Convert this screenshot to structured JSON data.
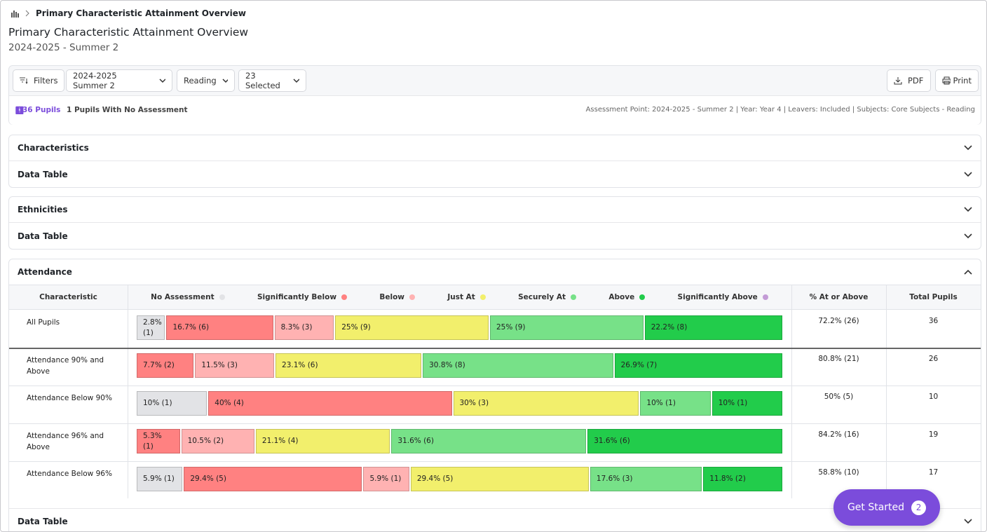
{
  "breadcrumb": {
    "title": "Primary Characteristic Attainment Overview"
  },
  "header": {
    "title": "Primary Characteristic Attainment Overview",
    "subtitle": "2024-2025 - Summer 2"
  },
  "toolbar": {
    "filters": "Filters",
    "term": "2024-2025 Summer 2",
    "subject": "Reading",
    "selected": "23 Selected",
    "pdf": "PDF",
    "print": "Print"
  },
  "summary": {
    "pupils": "36 Pupils",
    "no_assessment": "1 Pupils With No Assessment",
    "details": "Assessment Point: 2024-2025 - Summer 2 | Year: Year 4 | Leavers: Included | Subjects: Core Subjects - Reading"
  },
  "cards": [
    {
      "title": "Characteristics",
      "table": "Data Table"
    },
    {
      "title": "Ethnicities",
      "table": "Data Table"
    }
  ],
  "attendance": {
    "title": "Attendance",
    "columns": {
      "characteristic": "Characteristic",
      "at_or_above": "% At or Above",
      "total": "Total Pupils"
    },
    "legend": [
      {
        "name": "No Assessment",
        "color": "#e2e3e6"
      },
      {
        "name": "Significantly Below",
        "color": "#ff8181"
      },
      {
        "name": "Below",
        "color": "#ffb2b2"
      },
      {
        "name": "Just At",
        "color": "#f2ef6c"
      },
      {
        "name": "Securely At",
        "color": "#77e188"
      },
      {
        "name": "Above",
        "color": "#22cc4b"
      },
      {
        "name": "Significantly Above",
        "color": "#c39bd6"
      }
    ],
    "rows": [
      {
        "label": "All Pupils",
        "at_or_above": "72.2% (26)",
        "total": "36",
        "segments": [
          {
            "color": "#e2e3e6",
            "value": 2.8,
            "label": "2.8% (1)"
          },
          {
            "color": "#ff8181",
            "value": 16.7,
            "label": "16.7% (6)"
          },
          {
            "color": "#ffb2b2",
            "value": 8.3,
            "label": "8.3% (3)"
          },
          {
            "color": "#f2ef6c",
            "value": 25,
            "label": "25% (9)"
          },
          {
            "color": "#77e188",
            "value": 25,
            "label": "25% (9)"
          },
          {
            "color": "#22cc4b",
            "value": 22.2,
            "label": "22.2% (8)"
          }
        ]
      },
      {
        "label": "Attendance 90% and Above",
        "at_or_above": "80.8% (21)",
        "total": "26",
        "segments": [
          {
            "color": "#ff8181",
            "value": 7.7,
            "label": "7.7% (2)"
          },
          {
            "color": "#ffb2b2",
            "value": 11.5,
            "label": "11.5% (3)"
          },
          {
            "color": "#f2ef6c",
            "value": 23.1,
            "label": "23.1% (6)"
          },
          {
            "color": "#77e188",
            "value": 30.8,
            "label": "30.8% (8)"
          },
          {
            "color": "#22cc4b",
            "value": 26.9,
            "label": "26.9% (7)"
          }
        ]
      },
      {
        "label": "Attendance Below 90%",
        "at_or_above": "50% (5)",
        "total": "10",
        "segments": [
          {
            "color": "#e2e3e6",
            "value": 10,
            "label": "10% (1)"
          },
          {
            "color": "#ff8181",
            "value": 40,
            "label": "40% (4)"
          },
          {
            "color": "#f2ef6c",
            "value": 30,
            "label": "30% (3)"
          },
          {
            "color": "#77e188",
            "value": 10,
            "label": "10% (1)"
          },
          {
            "color": "#22cc4b",
            "value": 10,
            "label": "10% (1)"
          }
        ]
      },
      {
        "label": "Attendance 96% and Above",
        "at_or_above": "84.2% (16)",
        "total": "19",
        "segments": [
          {
            "color": "#ff8181",
            "value": 5.3,
            "label": "5.3% (1)"
          },
          {
            "color": "#ffb2b2",
            "value": 10.5,
            "label": "10.5% (2)"
          },
          {
            "color": "#f2ef6c",
            "value": 21.1,
            "label": "21.1% (4)"
          },
          {
            "color": "#77e188",
            "value": 31.6,
            "label": "31.6% (6)"
          },
          {
            "color": "#22cc4b",
            "value": 31.6,
            "label": "31.6% (6)"
          }
        ]
      },
      {
        "label": "Attendance Below 96%",
        "at_or_above": "58.8% (10)",
        "total": "17",
        "segments": [
          {
            "color": "#e2e3e6",
            "value": 5.9,
            "label": "5.9% (1)"
          },
          {
            "color": "#ff8181",
            "value": 29.4,
            "label": "29.4% (5)"
          },
          {
            "color": "#ffb2b2",
            "value": 5.9,
            "label": "5.9% (1)"
          },
          {
            "color": "#f2ef6c",
            "value": 29.4,
            "label": "29.4% (5)"
          },
          {
            "color": "#77e188",
            "value": 17.6,
            "label": "17.6% (3)"
          },
          {
            "color": "#22cc4b",
            "value": 11.8,
            "label": "11.8% (2)"
          }
        ]
      }
    ],
    "footer": "Data Table"
  },
  "cta": {
    "label": "Get Started",
    "count": "2"
  }
}
